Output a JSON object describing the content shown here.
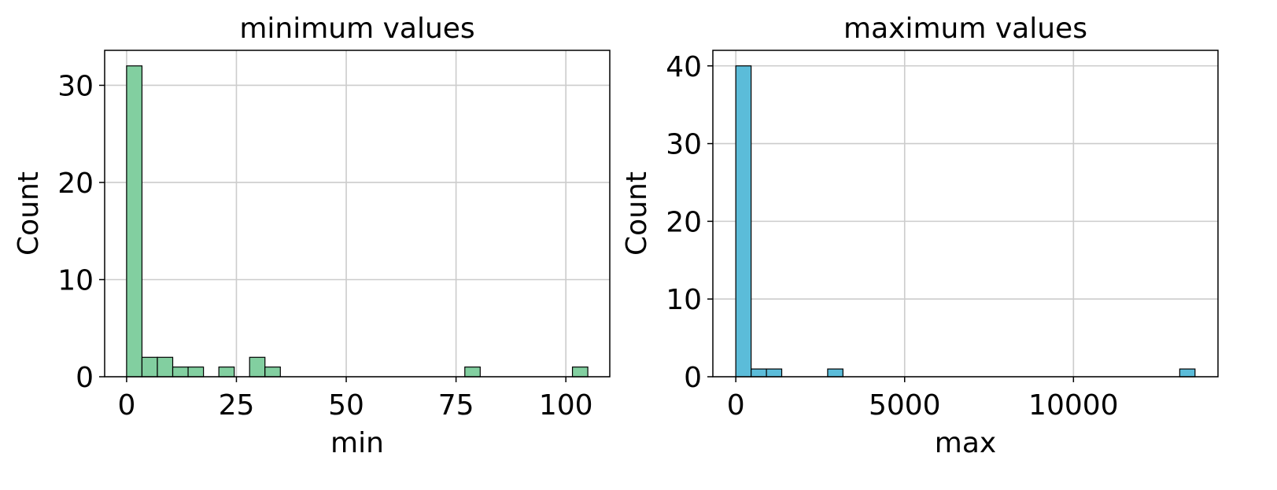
{
  "chart_data": [
    {
      "type": "bar",
      "title": "minimum values",
      "xlabel": "min",
      "ylabel": "Count",
      "color": "#82cfa0",
      "edge_color": "#000000",
      "grid": true,
      "xlim": [
        -5,
        110
      ],
      "ylim": [
        0,
        33.6
      ],
      "xticks": [
        0,
        25,
        50,
        75,
        100
      ],
      "xtick_labels": [
        "0",
        "25",
        "50",
        "75",
        "100"
      ],
      "yticks": [
        0,
        10,
        20,
        30
      ],
      "ytick_labels": [
        "0",
        "10",
        "20",
        "30"
      ],
      "bin_edges": [
        0,
        3.5,
        7,
        10.5,
        14,
        17.5,
        21,
        24.5,
        28,
        31.5,
        35,
        38.5,
        42,
        45.5,
        49,
        52.5,
        56,
        59.5,
        63,
        66.5,
        70,
        73.5,
        77,
        80.5,
        84,
        87.5,
        91,
        94.5,
        98,
        101.5,
        105
      ],
      "values": [
        32,
        2,
        2,
        1,
        1,
        0,
        1,
        0,
        2,
        1,
        0,
        0,
        0,
        0,
        0,
        0,
        0,
        0,
        0,
        0,
        0,
        0,
        1,
        0,
        0,
        0,
        0,
        0,
        0,
        1
      ]
    },
    {
      "type": "bar",
      "title": "maximum values",
      "xlabel": "max",
      "ylabel": "Count",
      "color": "#5bbcd9",
      "edge_color": "#000000",
      "grid": true,
      "xlim": [
        -680,
        14280
      ],
      "ylim": [
        0,
        42
      ],
      "xticks": [
        0,
        5000,
        10000
      ],
      "xtick_labels": [
        "0",
        "5000",
        "10000"
      ],
      "yticks": [
        0,
        10,
        20,
        30,
        40
      ],
      "ytick_labels": [
        "0",
        "10",
        "20",
        "30",
        "40"
      ],
      "bin_edges": [
        0,
        453.3,
        906.7,
        1360,
        1813.3,
        2266.7,
        2720,
        3173.3,
        3626.7,
        4080,
        4533.3,
        4986.7,
        5440,
        5893.3,
        6346.7,
        6800,
        7253.3,
        7706.7,
        8160,
        8613.3,
        9066.7,
        9520,
        9973.3,
        10426.7,
        10880,
        11333.3,
        11786.7,
        12240,
        12693.3,
        13146.7,
        13600
      ],
      "values": [
        40,
        1,
        1,
        0,
        0,
        0,
        1,
        0,
        0,
        0,
        0,
        0,
        0,
        0,
        0,
        0,
        0,
        0,
        0,
        0,
        0,
        0,
        0,
        0,
        0,
        0,
        0,
        0,
        0,
        1
      ]
    }
  ]
}
